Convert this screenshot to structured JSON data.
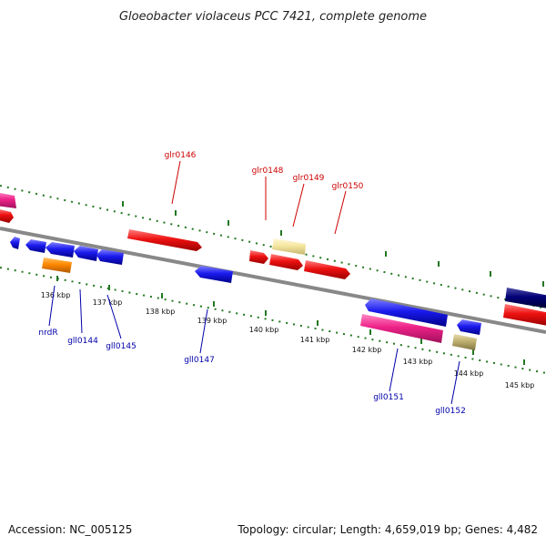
{
  "title": "Gloeobacter violaceus PCC 7421, complete genome",
  "footer": {
    "accession": "Accession: NC_005125",
    "topology": "Topology: circular; Length: 4,659,019 bp; Genes: 4,482"
  },
  "ticks": [
    "136 kbp",
    "137 kbp",
    "138 kbp",
    "139 kbp",
    "140 kbp",
    "141 kbp",
    "142 kbp",
    "143 kbp",
    "144 kbp",
    "145 kbp"
  ],
  "forward_genes": [
    "glr0146",
    "glr0148",
    "glr0149",
    "glr0150"
  ],
  "reverse_genes": [
    "nrdR",
    "gll0144",
    "gll0145",
    "gll0147",
    "gll0151",
    "gll0152"
  ],
  "colors": {
    "red": "#ee1111",
    "blue": "#1a1aee",
    "pink": "#ee2288",
    "orange": "#ff8800",
    "pale_yellow": "#f5e6a0",
    "khaki": "#bfb070",
    "navy": "#000077",
    "backbone": "#888888",
    "dots": "#227722"
  }
}
